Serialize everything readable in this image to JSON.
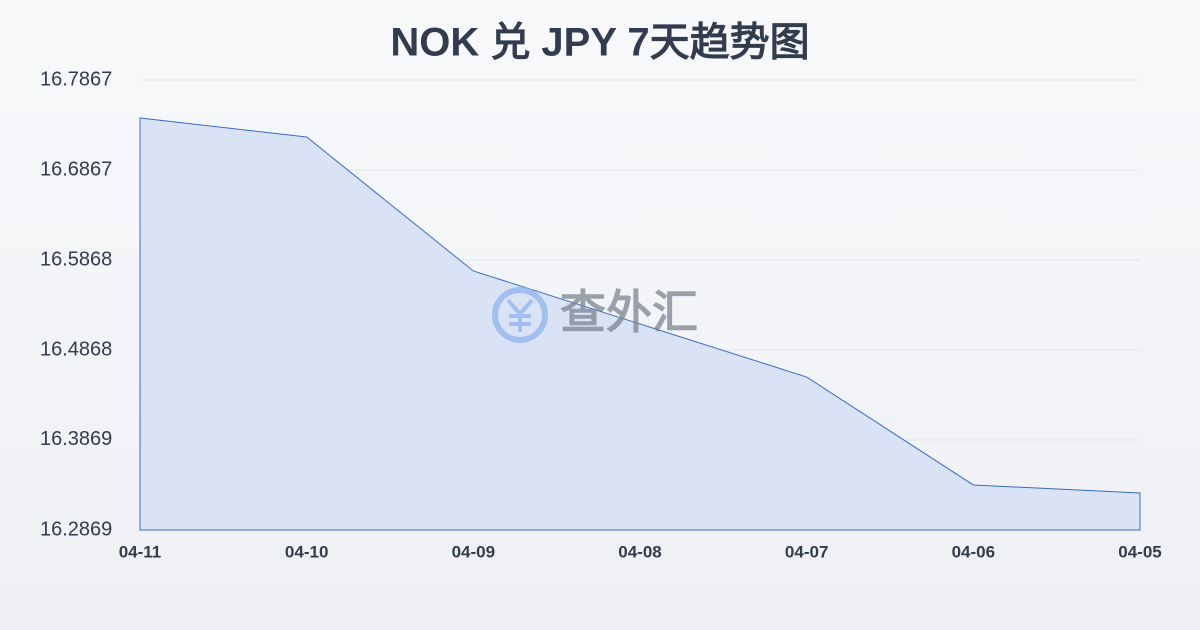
{
  "chart_data": {
    "type": "area",
    "title": "NOK 兑 JPY 7天趋势图",
    "watermark": "查外汇",
    "categories": [
      "04-11",
      "04-10",
      "04-09",
      "04-08",
      "04-07",
      "04-06",
      "04-05"
    ],
    "values": [
      16.7445,
      16.7234,
      16.5746,
      16.5157,
      16.4568,
      16.3369,
      16.328
    ],
    "color": "#3a6cc8",
    "fill": "#dae3f6",
    "ylim": [
      16.2869,
      16.7867
    ],
    "yticks": [
      16.2869,
      16.3869,
      16.4868,
      16.5868,
      16.6867,
      16.7867
    ],
    "grid": true
  }
}
